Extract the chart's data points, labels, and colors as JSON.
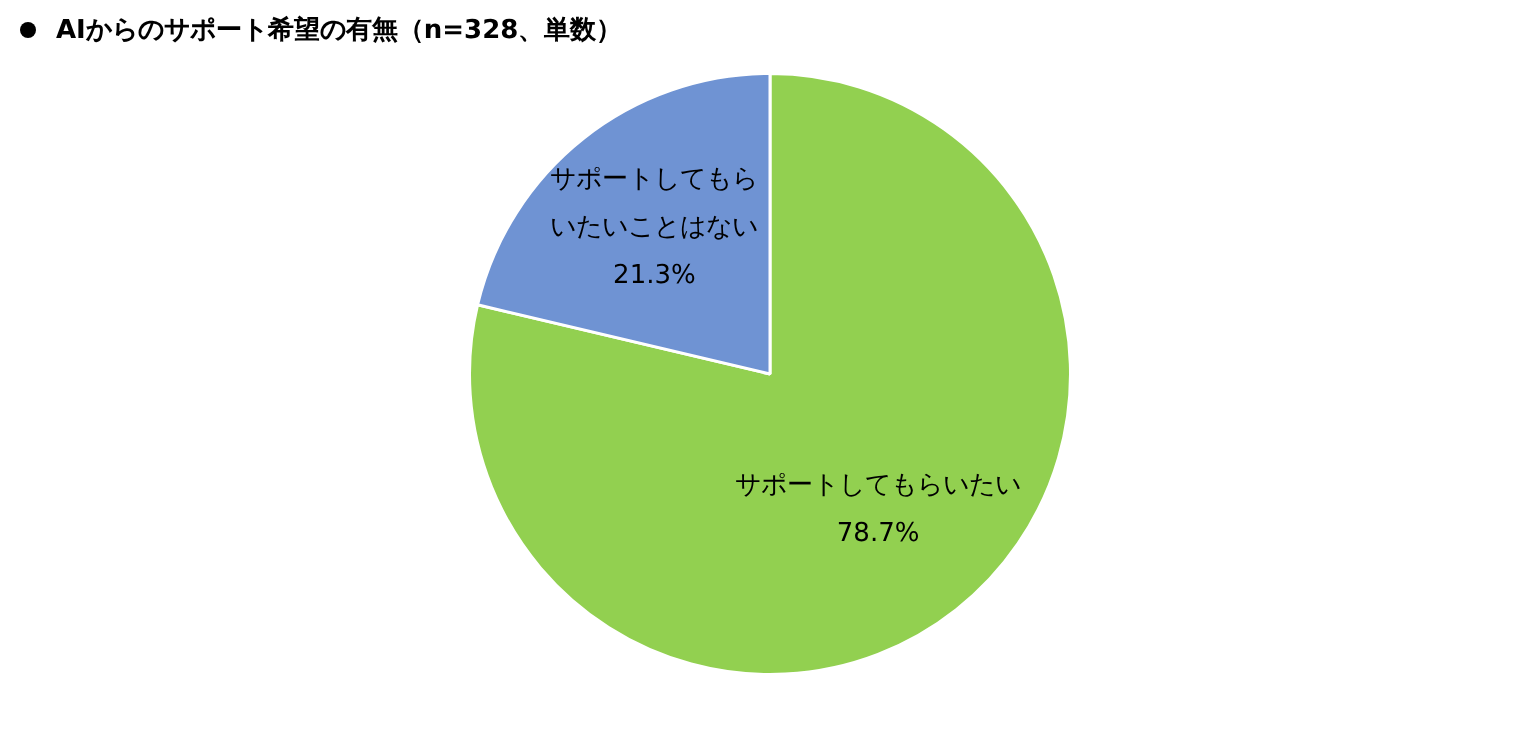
{
  "chart_data": {
    "type": "pie",
    "title": "AIからのサポート希望の有無（n=328、単数）",
    "categories": [
      "サポートしてもらいたい",
      "サポートしてもらいたいことはない"
    ],
    "values": [
      78.7,
      21.3
    ],
    "colors": [
      "#92d050",
      "#6f93d3"
    ],
    "value_labels": [
      "78.7%",
      "21.3%"
    ],
    "legend": false
  }
}
